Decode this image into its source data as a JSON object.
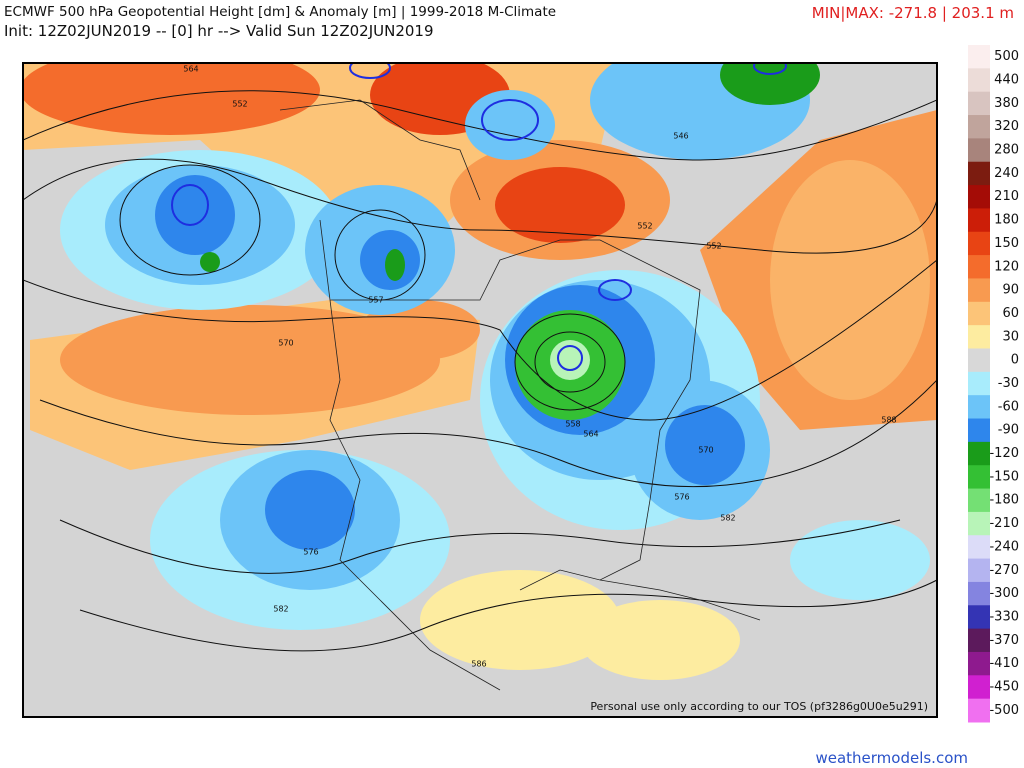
{
  "header": {
    "title": "ECMWF 500 hPa Geopotential Height [dm] & Anomaly [m] | 1999-2018 M-Climate",
    "subtitle": "Init: 12Z02JUN2019 -- [0] hr --> Valid Sun 12Z02JUN2019",
    "minmax": "MIN|MAX: -271.8 | 203.1 m"
  },
  "map": {
    "contour_labels": [
      564,
      552,
      546,
      552,
      552,
      557,
      570,
      558,
      564,
      570,
      576,
      576,
      582,
      582,
      588,
      586
    ],
    "watermark": "Personal use only according to our TOS (pf3286g0U0e5u291)"
  },
  "colorbar": {
    "labels": [
      500,
      440,
      380,
      320,
      280,
      240,
      210,
      180,
      150,
      120,
      90,
      60,
      30,
      0,
      -30,
      -60,
      -90,
      -120,
      -150,
      -180,
      -210,
      -240,
      -270,
      -300,
      -330,
      -370,
      -410,
      -450,
      -500
    ],
    "colors": [
      "#fbeeee",
      "#ecdcd8",
      "#d8c4c0",
      "#c0a49c",
      "#a8847c",
      "#7c1c10",
      "#a40c06",
      "#cc1e08",
      "#e84414",
      "#f46c2c",
      "#f89a50",
      "#fcc478",
      "#fdeca0",
      "#d8d8d8",
      "#a8ecfc",
      "#6cc4f8",
      "#2e86ec",
      "#1a9c1a",
      "#34c034",
      "#74e074",
      "#b8f4b8",
      "#dcdcf8",
      "#b4b4f0",
      "#8484e0",
      "#3434b4",
      "#5c1a5c",
      "#8e1a8e",
      "#d020d0",
      "#f070f0"
    ]
  },
  "footer": "weathermodels.com"
}
